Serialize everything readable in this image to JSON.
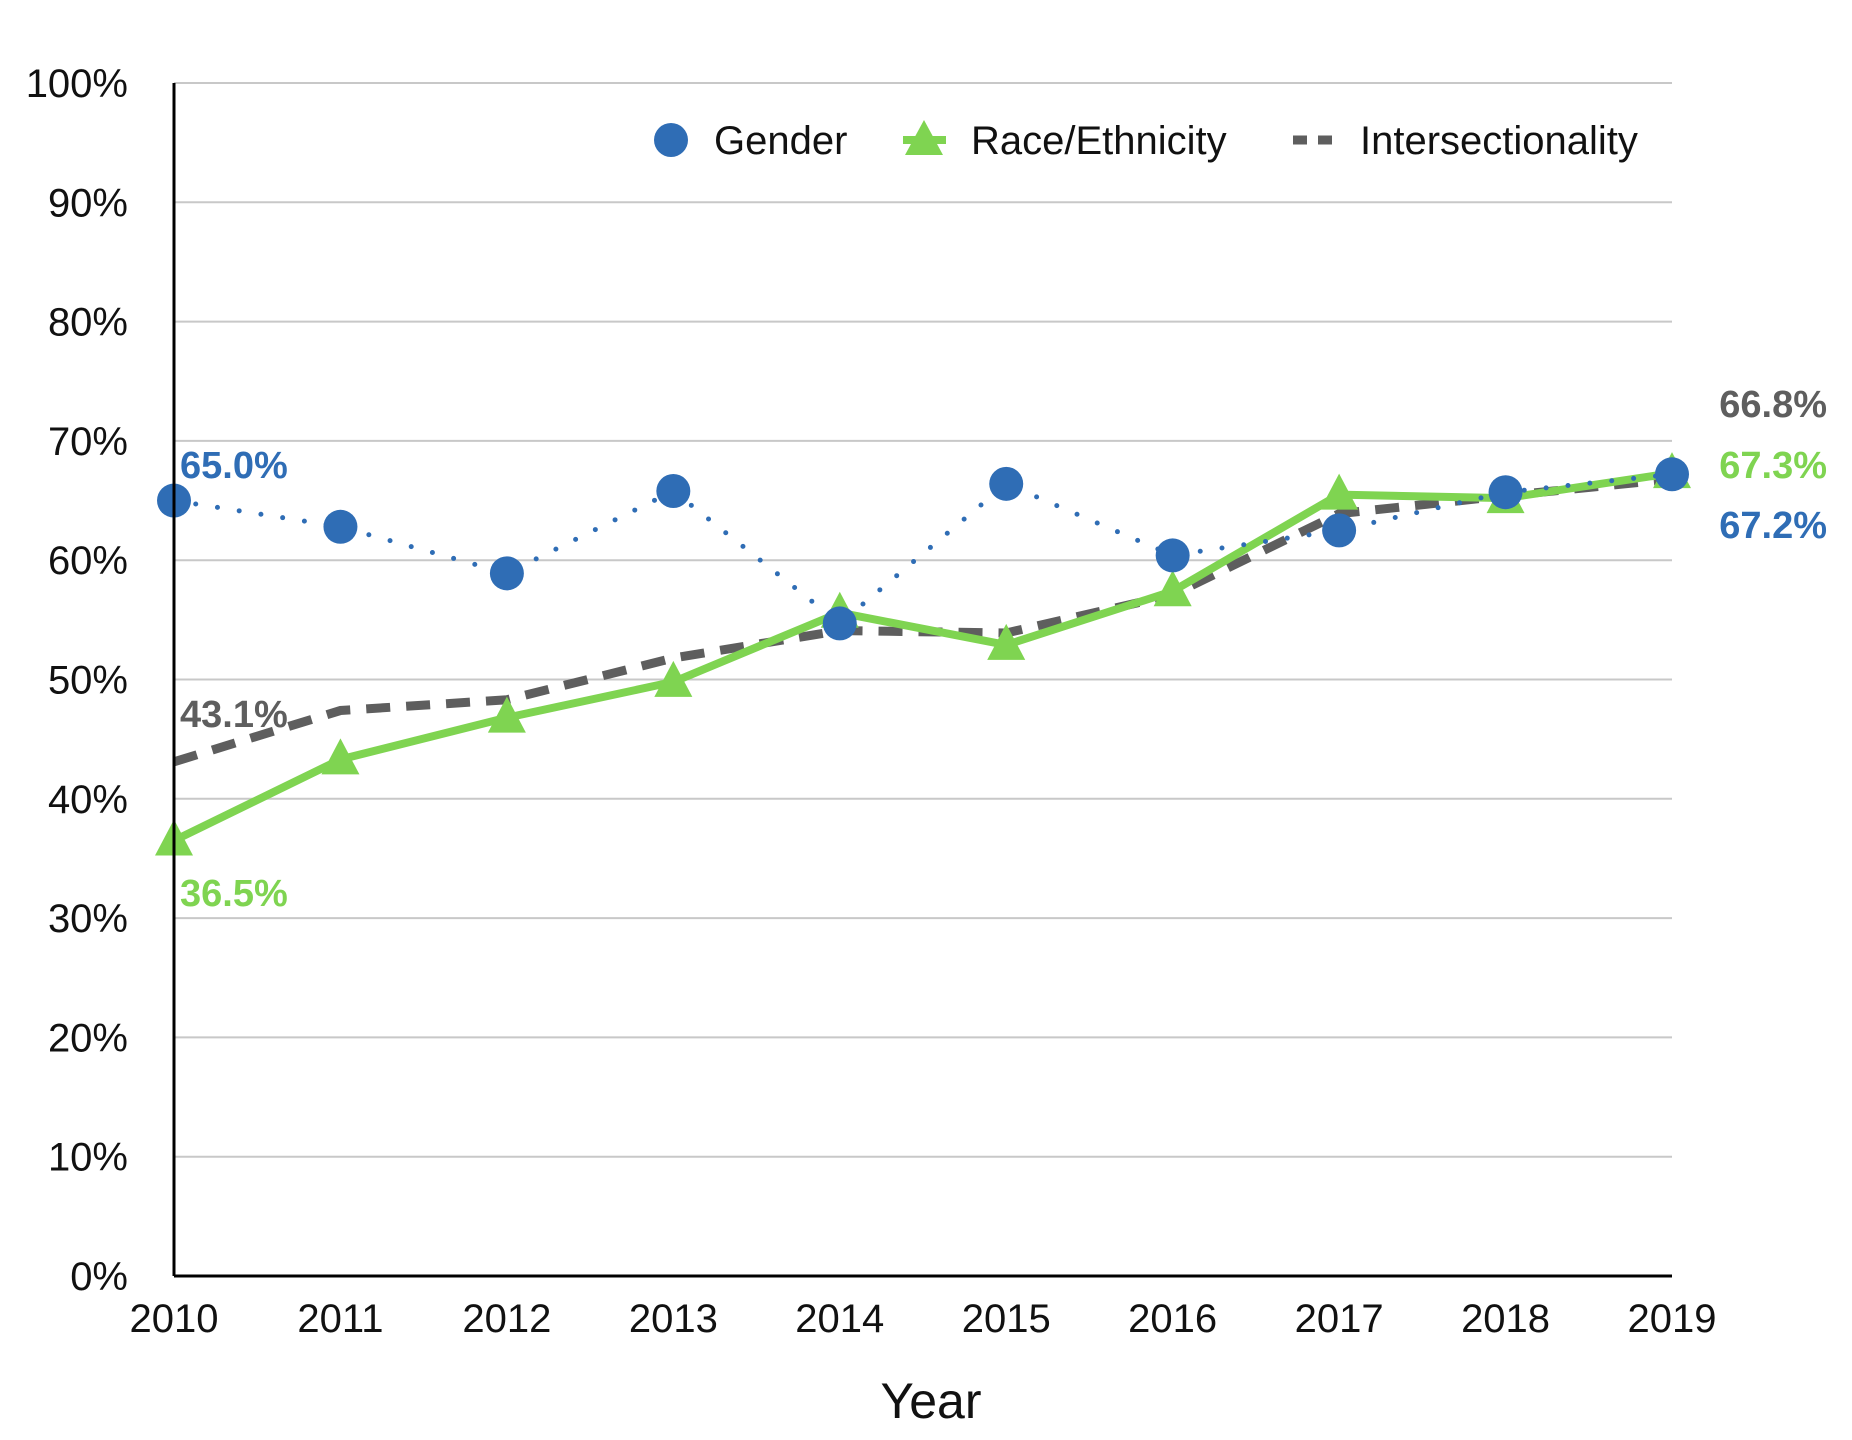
{
  "chart_data": {
    "type": "line",
    "title": "",
    "xlabel": "Year",
    "ylabel": "",
    "x": [
      "2010",
      "2011",
      "2012",
      "2013",
      "2014",
      "2015",
      "2016",
      "2017",
      "2018",
      "2019"
    ],
    "ylim": [
      0,
      100
    ],
    "yticks": [
      "0%",
      "10%",
      "20%",
      "30%",
      "40%",
      "50%",
      "60%",
      "70%",
      "80%",
      "90%",
      "100%"
    ],
    "grid": true,
    "legend_position": "top-right",
    "series": [
      {
        "name": "Gender",
        "values": [
          65.0,
          62.8,
          58.9,
          65.8,
          54.7,
          66.4,
          60.4,
          62.5,
          65.7,
          67.2
        ],
        "color": "#2f6db5",
        "marker": "circle",
        "line": "dotted"
      },
      {
        "name": "Race/Ethnicity",
        "values": [
          36.5,
          43.3,
          46.8,
          49.8,
          55.6,
          52.9,
          57.4,
          65.5,
          65.2,
          67.3
        ],
        "color": "#7fd451",
        "marker": "triangle",
        "line": "solid"
      },
      {
        "name": "Intersectionality",
        "values": [
          43.1,
          47.4,
          48.3,
          51.8,
          54.1,
          53.9,
          57.1,
          63.9,
          65.4,
          66.8
        ],
        "color": "#5e5e5e",
        "marker": "none",
        "line": "dashed"
      }
    ],
    "annotations": [
      {
        "text": "65.0%",
        "series": "Gender",
        "x": "2010"
      },
      {
        "text": "36.5%",
        "series": "Race/Ethnicity",
        "x": "2010"
      },
      {
        "text": "43.1%",
        "series": "Intersectionality",
        "x": "2010"
      },
      {
        "text": "66.8%",
        "series": "Intersectionality",
        "x": "2019"
      },
      {
        "text": "67.3%",
        "series": "Race/Ethnicity",
        "x": "2019"
      },
      {
        "text": "67.2%",
        "series": "Gender",
        "x": "2019"
      }
    ]
  }
}
